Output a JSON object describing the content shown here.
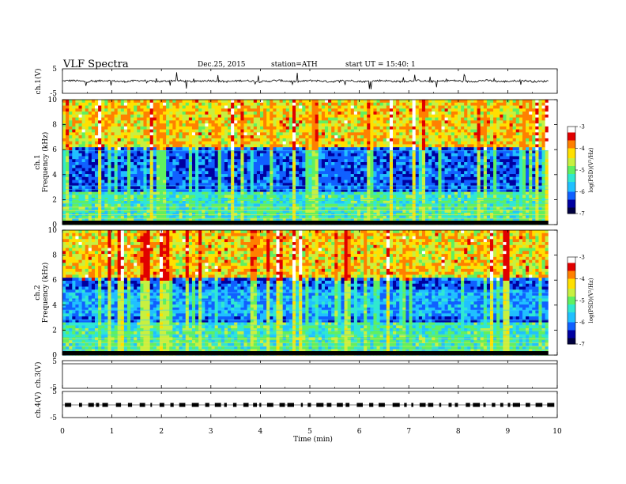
{
  "header": {
    "title": "VLF  Spectra",
    "date": "Dec.25, 2015",
    "station": "station=ATH",
    "start": "start  UT  =    15:40: 1"
  },
  "colors": {
    "background": "#ffffff",
    "colormap": [
      "#000040",
      "#0000a0",
      "#1060ff",
      "#20c0ff",
      "#30e8d0",
      "#60f060",
      "#c8f040",
      "#ffe000",
      "#ff8000",
      "#e00000",
      "#ffffff"
    ]
  },
  "chart_data": [
    {
      "type": "line",
      "name": "ch1-waveform",
      "ylabel": "ch.1(V)",
      "ylim": [
        -5,
        5
      ],
      "yticks": [
        "5",
        "-5"
      ],
      "xlim": [
        0,
        10
      ]
    },
    {
      "type": "heatmap",
      "name": "ch1-spectrogram",
      "ylabel_channel": "ch.1",
      "ylabel": "Frequency  (kHz)",
      "ylim": [
        0,
        10
      ],
      "yticks": [
        "0",
        "2",
        "4",
        "6",
        "8",
        "10"
      ],
      "xlim": [
        0,
        10
      ],
      "colorbar": {
        "label": "log(PSD)(V²/Hz)",
        "range": [
          -7,
          -3
        ],
        "ticks": [
          "-3",
          "-4",
          "-5",
          "-6",
          "-7"
        ]
      }
    },
    {
      "type": "heatmap",
      "name": "ch2-spectrogram",
      "ylabel_channel": "ch.2",
      "ylabel": "Frequency  (kHz)",
      "ylim": [
        0,
        10
      ],
      "yticks": [
        "0",
        "2",
        "4",
        "6",
        "8",
        "10"
      ],
      "xlim": [
        0,
        10
      ],
      "colorbar": {
        "label": "log(PSD)(V²/Hz)",
        "range": [
          -7,
          -3
        ],
        "ticks": [
          "-3",
          "-4",
          "-5",
          "-6",
          "-7"
        ]
      }
    },
    {
      "type": "line",
      "name": "ch3-waveform",
      "ylabel": "ch.3(V)",
      "ylim": [
        -5,
        5
      ],
      "yticks": [
        "5",
        "-5"
      ],
      "xlim": [
        0,
        10
      ]
    },
    {
      "type": "line",
      "name": "ch4-waveform",
      "ylabel": "ch.4(V)",
      "ylim": [
        -5,
        5
      ],
      "yticks": [
        "5",
        "-5"
      ],
      "xlim": [
        0,
        10
      ],
      "xlabel": "Time  (min)",
      "xticks": [
        "0",
        "1",
        "2",
        "3",
        "4",
        "5",
        "6",
        "7",
        "8",
        "9",
        "10"
      ]
    }
  ]
}
